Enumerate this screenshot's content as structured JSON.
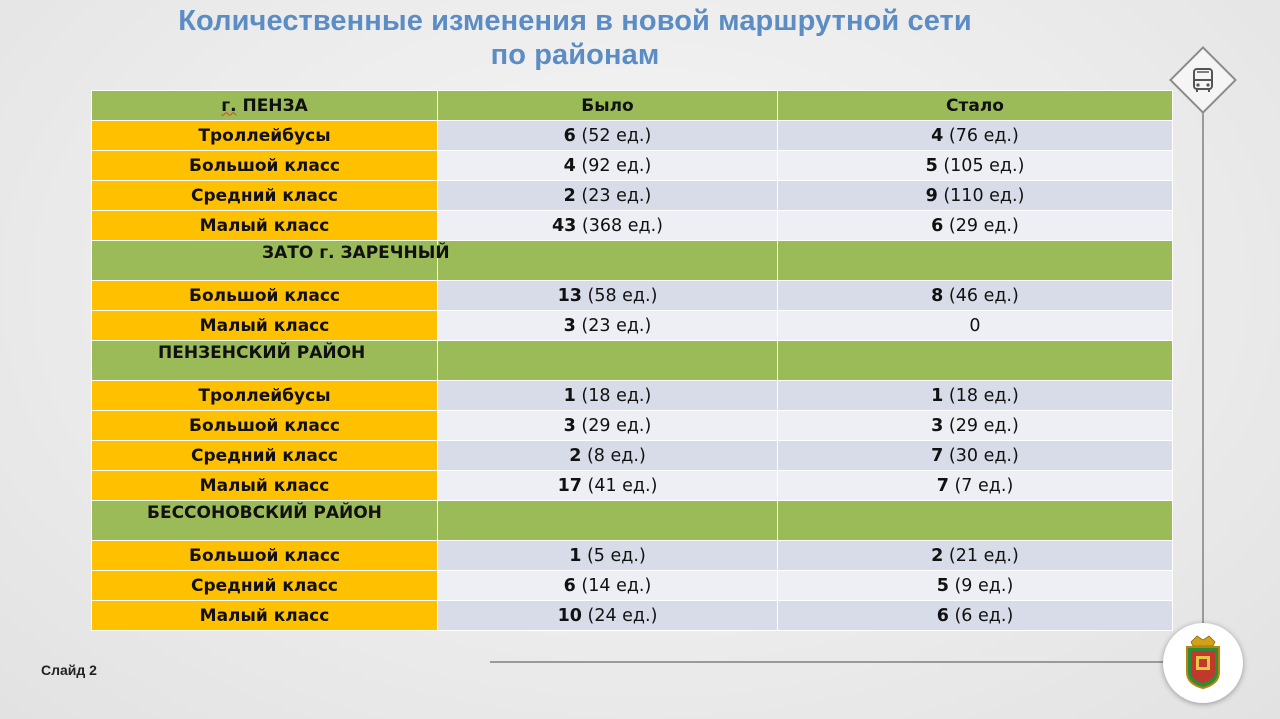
{
  "title": {
    "line1": "Количественные изменения в новой маршрутной сети",
    "line2": "по районам"
  },
  "table": {
    "headers": [
      "г. ПЕНЗА",
      "Было",
      "Стало"
    ],
    "penza_rows": [
      {
        "category": "Троллейбусы",
        "was_num": "6",
        "was_units": " (52 ед.)",
        "now_num": "4",
        "now_units": " (76 ед.)"
      },
      {
        "category": "Большой класс",
        "was_num": "4",
        "was_units": " (92 ед.)",
        "now_num": "5",
        "now_units": " (105 ед.)"
      },
      {
        "category": "Средний класс",
        "was_num": "2",
        "was_units": " (23 ед.)",
        "now_num": "9",
        "now_units": " (110 ед.)"
      },
      {
        "category": "Малый класс",
        "was_num": "43",
        "was_units": " (368 ед.)",
        "now_num": "6",
        "now_units": " (29 ед.)"
      }
    ],
    "sections": [
      {
        "name": "ЗАТО г. ЗАРЕЧНЫЙ",
        "rows": [
          {
            "category": "Большой класс",
            "was_num": "13",
            "was_units": " (58 ед.)",
            "now_num": "8",
            "now_units": " (46 ед.)"
          },
          {
            "category": "Малый класс",
            "was_num": "3",
            "was_units": " (23 ед.)",
            "now_num": "",
            "now_units": "0"
          }
        ]
      },
      {
        "name": "ПЕНЗЕНСКИЙ РАЙОН",
        "rows": [
          {
            "category": "Троллейбусы",
            "was_num": "1",
            "was_units": " (18 ед.)",
            "now_num": "1",
            "now_units": " (18 ед.)"
          },
          {
            "category": "Большой класс",
            "was_num": "3",
            "was_units": " (29 ед.)",
            "now_num": "3",
            "now_units": " (29 ед.)"
          },
          {
            "category": "Средний класс",
            "was_num": "2",
            "was_units": " (8 ед.)",
            "now_num": "7",
            "now_units": " (30 ед.)"
          },
          {
            "category": "Малый класс",
            "was_num": "17",
            "was_units": " (41 ед.)",
            "now_num": "7",
            "now_units": " (7 ед.)"
          }
        ]
      },
      {
        "name": "БЕССОНОВСКИЙ РАЙОН",
        "rows": [
          {
            "category": "Большой класс",
            "was_num": "1",
            "was_units": " (5 ед.)",
            "now_num": "2",
            "now_units": " (21 ед.)"
          },
          {
            "category": "Средний класс",
            "was_num": "6",
            "was_units": " (14 ед.)",
            "now_num": "5",
            "now_units": " (9 ед.)"
          },
          {
            "category": "Малый класс",
            "was_num": "10",
            "was_units": " (24 ед.)",
            "now_num": "6",
            "now_units": " (6 ед.)"
          }
        ]
      }
    ]
  },
  "footer": {
    "slide_label": "Слайд 2"
  },
  "icons": {
    "top_right": "bus-icon",
    "bottom_right": "coat-of-arms-icon"
  },
  "colors": {
    "title": "#5b8cc4",
    "header_green": "#9bbb59",
    "category_orange": "#ffc000",
    "row_blue": "#d8dce8",
    "row_light": "#edeff4"
  }
}
